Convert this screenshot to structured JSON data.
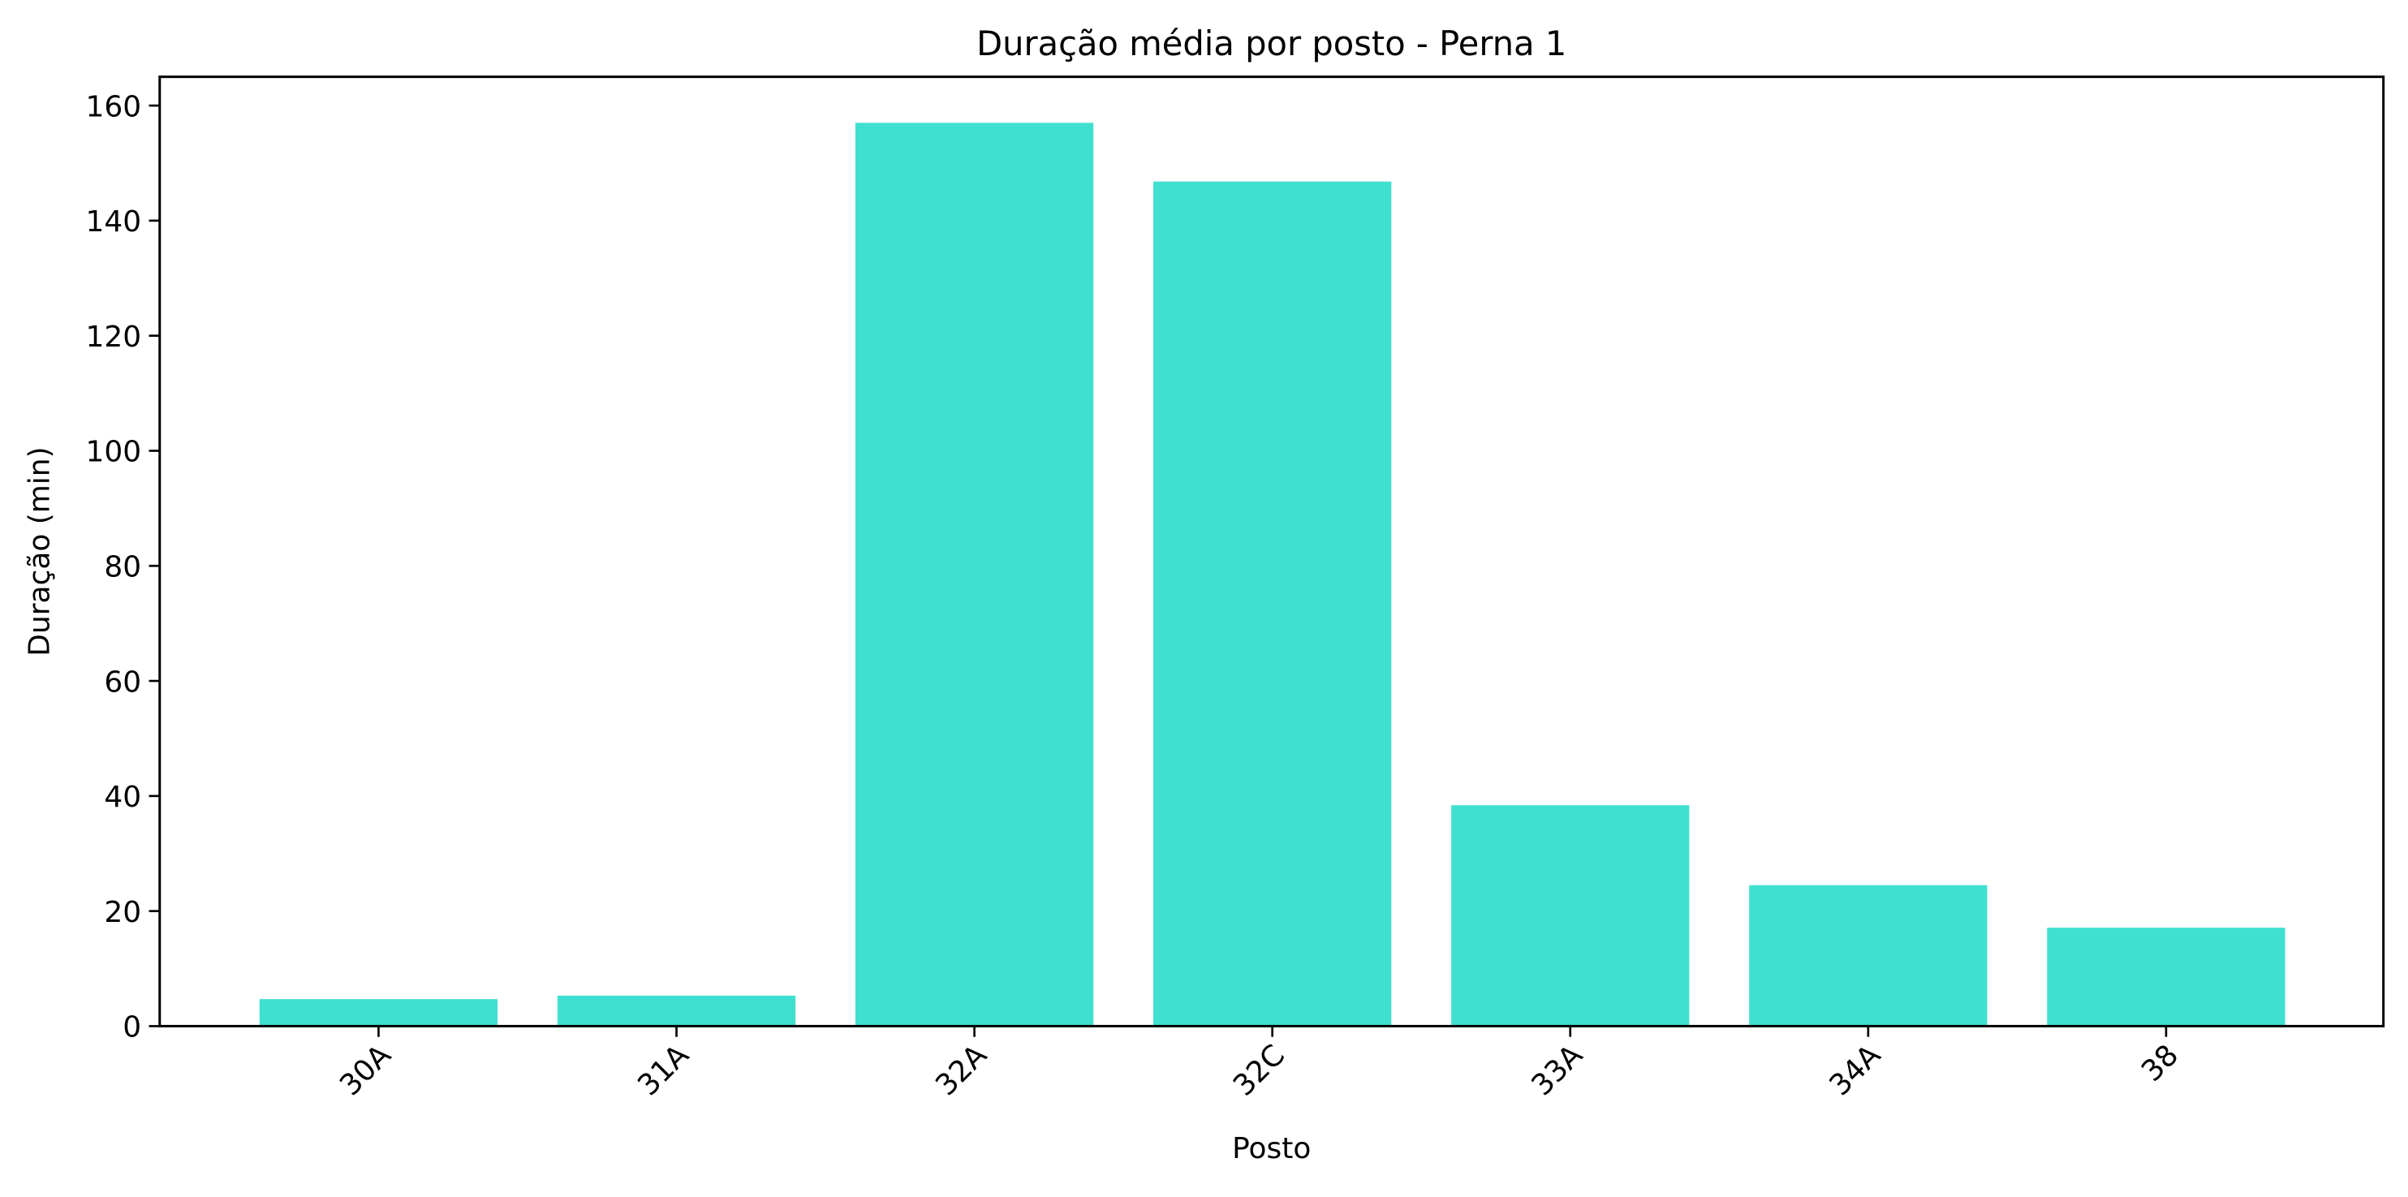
{
  "chart_data": {
    "type": "bar",
    "title": "Duração média por posto - Perna 1",
    "xlabel": "Posto",
    "ylabel": "Duração (min)",
    "categories": [
      "30A",
      "31A",
      "32A",
      "32C",
      "33A",
      "34A",
      "38"
    ],
    "values": [
      4.7,
      5.3,
      157.0,
      146.8,
      38.4,
      24.5,
      17.1
    ],
    "ylim": [
      0,
      165
    ],
    "yticks": [
      0,
      20,
      40,
      60,
      80,
      100,
      120,
      140,
      160
    ],
    "grid": false,
    "legend": "none",
    "bar_color": "#40E0D0"
  }
}
